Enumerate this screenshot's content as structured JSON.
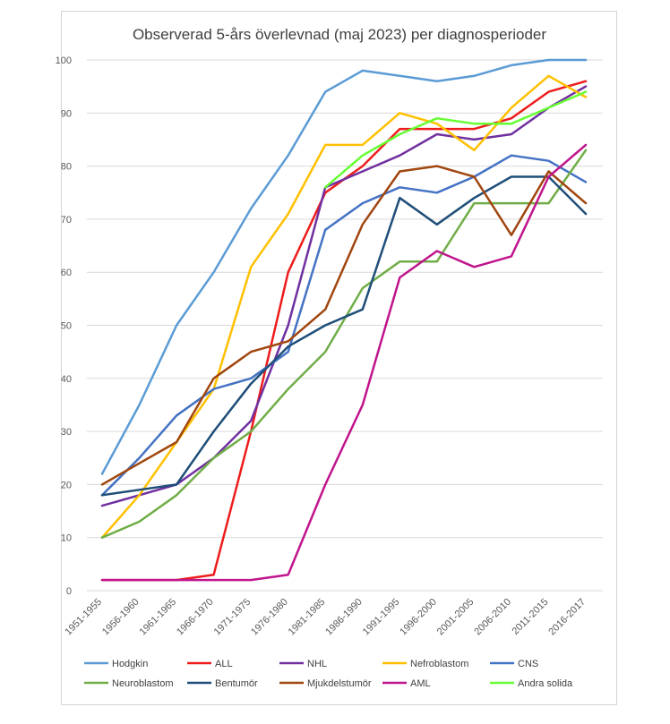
{
  "chart_data": {
    "type": "line",
    "title": "Observerad 5-års överlevnad (maj 2023) per diagnosperioder",
    "xlabel": "",
    "ylabel": "",
    "ylim": [
      0,
      100
    ],
    "yticks": [
      0,
      10,
      20,
      30,
      40,
      50,
      60,
      70,
      80,
      90,
      100
    ],
    "grid": "horizontal",
    "legend_position": "bottom",
    "categories": [
      "1951-1955",
      "1956-1960",
      "1961-1965",
      "1966-1970",
      "1971-1975",
      "1976-1980",
      "1981-1985",
      "1986-1990",
      "1991-1995",
      "1996-2000",
      "2001-2005",
      "2006-2010",
      "2011-2015",
      "2016-2017"
    ],
    "series": [
      {
        "name": "Hodgkin",
        "color": "#5B9BD5",
        "values": [
          22,
          35,
          50,
          60,
          72,
          82,
          94,
          98,
          97,
          96,
          97,
          99,
          100,
          100
        ]
      },
      {
        "name": "ALL",
        "color": "#EE1C1C",
        "values": [
          2,
          2,
          2,
          3,
          30,
          60,
          75,
          80,
          87,
          87,
          87,
          89,
          94,
          96
        ]
      },
      {
        "name": "NHL",
        "color": "#7030A0",
        "values": [
          16,
          18,
          20,
          25,
          32,
          50,
          76,
          79,
          82,
          86,
          85,
          86,
          91,
          95
        ]
      },
      {
        "name": "Nefroblastom",
        "color": "#FFC000",
        "values": [
          10,
          18,
          28,
          38,
          61,
          71,
          84,
          84,
          90,
          88,
          83,
          91,
          97,
          93
        ]
      },
      {
        "name": "CNS",
        "color": "#4472C4",
        "values": [
          18,
          25,
          33,
          38,
          40,
          45,
          68,
          73,
          76,
          75,
          78,
          82,
          81,
          77
        ]
      },
      {
        "name": "Neuroblastom",
        "color": "#70AD47",
        "values": [
          10,
          13,
          18,
          25,
          30,
          38,
          45,
          57,
          62,
          62,
          73,
          73,
          73,
          83
        ]
      },
      {
        "name": "Bentumör",
        "color": "#1F4E79",
        "values": [
          18,
          19,
          20,
          30,
          39,
          46,
          50,
          53,
          74,
          69,
          74,
          78,
          78,
          71
        ]
      },
      {
        "name": "Mjukdelstumör",
        "color": "#A0460F",
        "values": [
          20,
          24,
          28,
          40,
          45,
          47,
          53,
          69,
          79,
          80,
          78,
          67,
          79,
          73
        ]
      },
      {
        "name": "AML",
        "color": "#C0148C",
        "values": [
          2,
          2,
          2,
          2,
          2,
          3,
          20,
          35,
          59,
          64,
          61,
          63,
          78,
          84
        ]
      },
      {
        "name": "Andra solida",
        "color": "#66FF33",
        "values": [
          null,
          null,
          null,
          null,
          null,
          null,
          76,
          82,
          86,
          89,
          88,
          88,
          91,
          94
        ]
      }
    ]
  }
}
